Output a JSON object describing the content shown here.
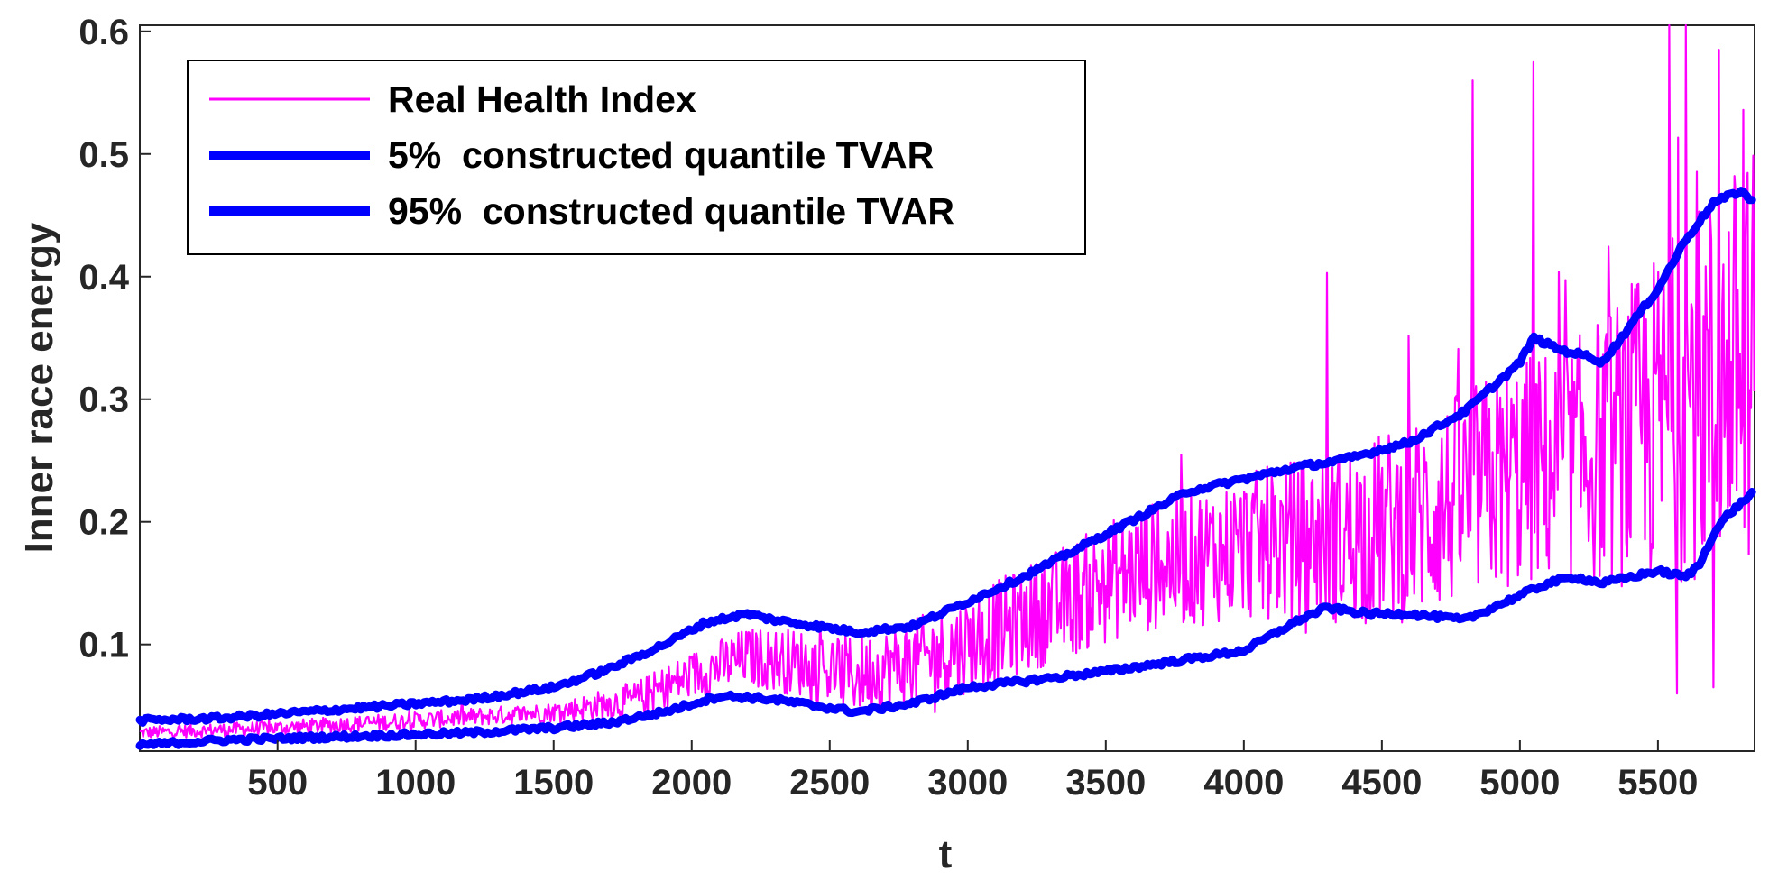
{
  "chart_data": {
    "type": "line",
    "xlabel": "t",
    "ylabel": "Inner race energy",
    "xlim": [
      1,
      5850
    ],
    "ylim": [
      0.013,
      0.605
    ],
    "xticks": [
      500,
      1000,
      1500,
      2000,
      2500,
      3000,
      3500,
      4000,
      4500,
      5000,
      5500
    ],
    "xtick_labels": [
      "500",
      "1000",
      "1500",
      "2000",
      "2500",
      "3000",
      "3500",
      "4000",
      "4500",
      "5000",
      "5500"
    ],
    "yticks": [
      0.1,
      0.2,
      0.3,
      0.4,
      0.5,
      0.6
    ],
    "ytick_labels": [
      "0.1",
      "0.2",
      "0.3",
      "0.4",
      "0.5",
      "0.6"
    ],
    "legend_position": "top-left",
    "series": [
      {
        "name": "Real Health Index",
        "color": "#ff00ff",
        "style": "thin-noisy",
        "trend_x": [
          1,
          500,
          1000,
          1500,
          1800,
          2000,
          2200,
          2400,
          2600,
          2800,
          3000,
          3200,
          3400,
          3600,
          3800,
          4000,
          4200,
          4400,
          4600,
          4800,
          5000,
          5200,
          5400,
          5600,
          5800,
          5850
        ],
        "trend_y": [
          0.028,
          0.032,
          0.038,
          0.045,
          0.055,
          0.075,
          0.09,
          0.085,
          0.075,
          0.085,
          0.1,
          0.12,
          0.14,
          0.16,
          0.17,
          0.18,
          0.185,
          0.19,
          0.2,
          0.22,
          0.24,
          0.25,
          0.27,
          0.3,
          0.33,
          0.34
        ],
        "noise_x": [
          1,
          1500,
          2000,
          3000,
          4000,
          4800,
          5200,
          5600,
          5850
        ],
        "noise_amp": [
          0.005,
          0.008,
          0.02,
          0.04,
          0.06,
          0.09,
          0.1,
          0.15,
          0.17
        ],
        "spikes": [
          [
            4300,
            0.403
          ],
          [
            4830,
            0.56
          ],
          [
            5050,
            0.575
          ],
          [
            5540,
            0.605
          ],
          [
            5600,
            0.608
          ],
          [
            5720,
            0.585
          ],
          [
            5570,
            0.06
          ],
          [
            5700,
            0.065
          ]
        ]
      },
      {
        "name": "5%  constructed quantile TVAR",
        "color": "#0000ff",
        "style": "thick",
        "x": [
          1,
          300,
          600,
          900,
          1200,
          1500,
          1700,
          1900,
          2100,
          2200,
          2300,
          2450,
          2600,
          2800,
          3000,
          3200,
          3500,
          3800,
          4000,
          4200,
          4300,
          4450,
          4600,
          4800,
          5000,
          5100,
          5200,
          5300,
          5400,
          5500,
          5600,
          5650,
          5700,
          5750,
          5800,
          5850
        ],
        "y": [
          0.018,
          0.022,
          0.024,
          0.026,
          0.028,
          0.032,
          0.036,
          0.045,
          0.058,
          0.057,
          0.055,
          0.05,
          0.045,
          0.052,
          0.065,
          0.07,
          0.078,
          0.088,
          0.095,
          0.12,
          0.13,
          0.125,
          0.125,
          0.12,
          0.14,
          0.15,
          0.155,
          0.15,
          0.155,
          0.16,
          0.155,
          0.165,
          0.19,
          0.205,
          0.215,
          0.225
        ]
      },
      {
        "name": "95%  constructed quantile TVAR",
        "color": "#0000ff",
        "style": "thick",
        "x": [
          1,
          300,
          600,
          900,
          1200,
          1500,
          1700,
          1900,
          2050,
          2200,
          2300,
          2450,
          2600,
          2800,
          3000,
          3200,
          3500,
          3800,
          4000,
          4200,
          4350,
          4600,
          4800,
          5000,
          5050,
          5150,
          5250,
          5300,
          5400,
          5500,
          5600,
          5700,
          5750,
          5800,
          5850
        ],
        "y": [
          0.038,
          0.04,
          0.045,
          0.05,
          0.055,
          0.065,
          0.08,
          0.1,
          0.118,
          0.125,
          0.12,
          0.115,
          0.11,
          0.115,
          0.135,
          0.155,
          0.19,
          0.225,
          0.235,
          0.245,
          0.25,
          0.265,
          0.29,
          0.33,
          0.35,
          0.34,
          0.335,
          0.33,
          0.36,
          0.39,
          0.43,
          0.46,
          0.465,
          0.47,
          0.46
        ]
      }
    ]
  }
}
